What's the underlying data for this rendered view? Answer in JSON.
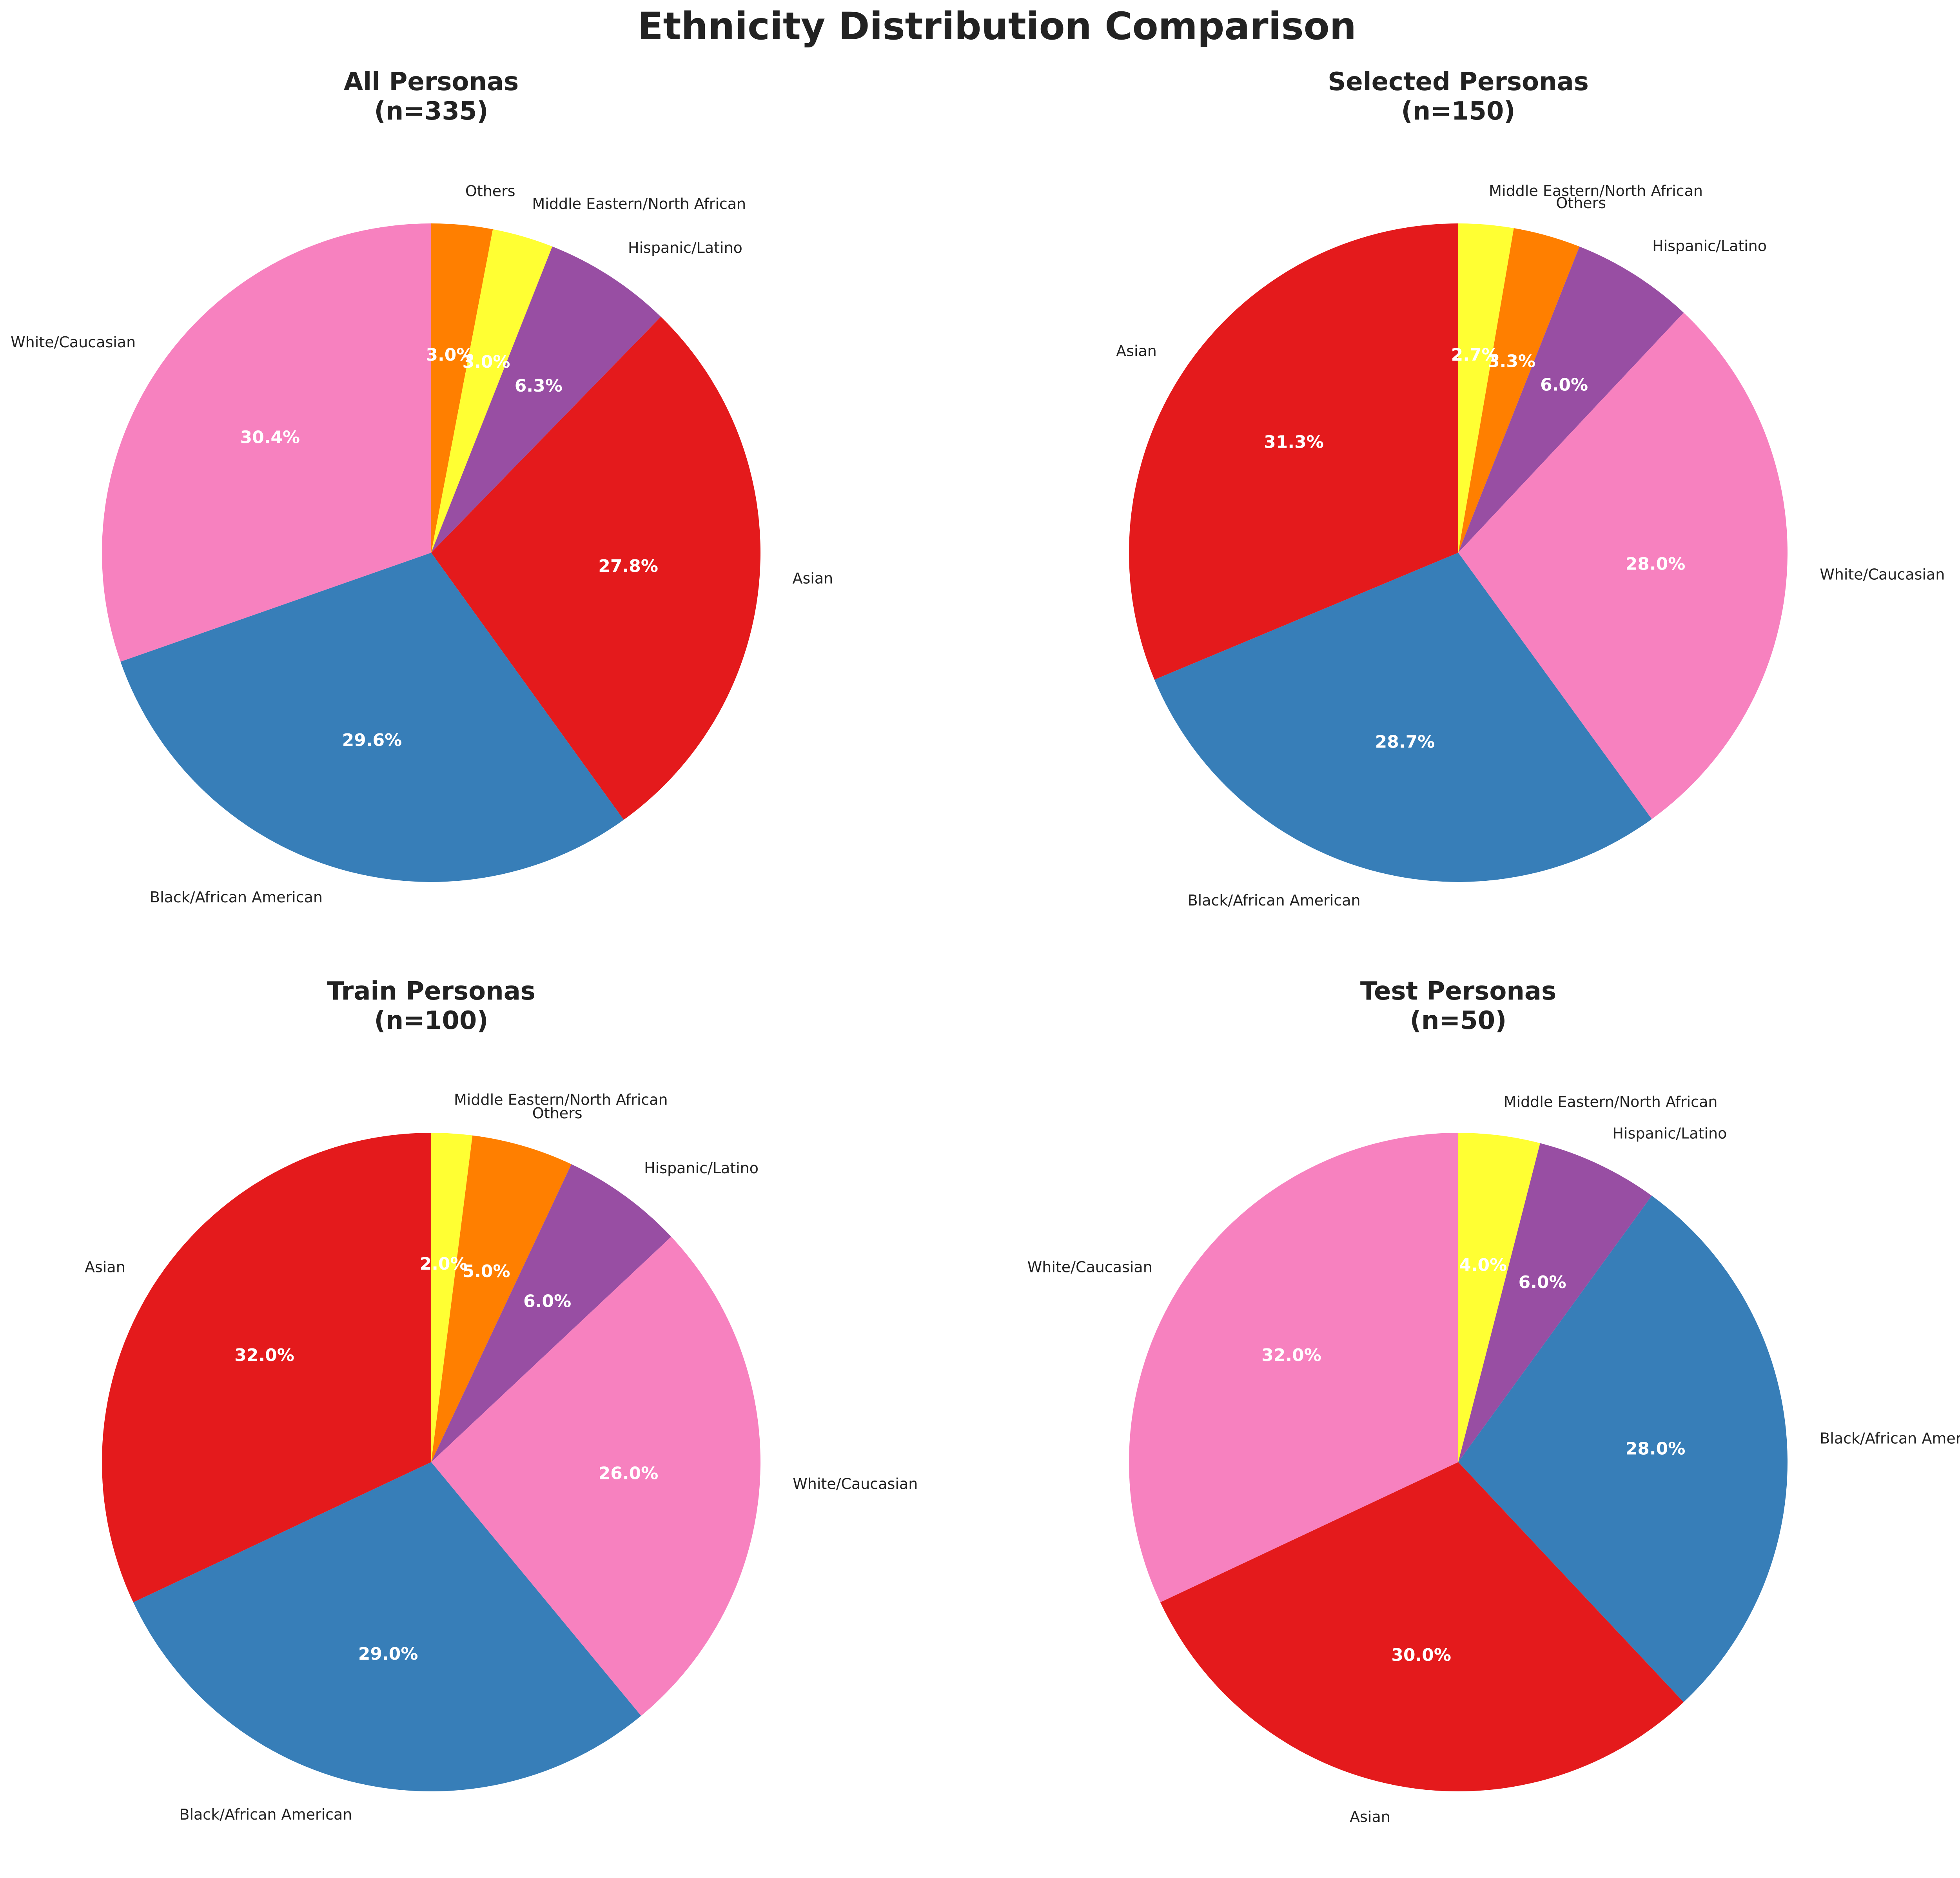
{
  "chart_data": {
    "type": "pie",
    "title": "Ethnicity Distribution Comparison",
    "start_angle_deg": 90,
    "direction": "clockwise",
    "colors": {
      "Asian": "#e41a1c",
      "Black/African American": "#377eb8",
      "Hispanic/Latino": "#984ea3",
      "White/Caucasian": "#f781bf",
      "Middle Eastern/North African": "#ffff33",
      "Others": "#ff7f00"
    },
    "panels": [
      {
        "title_line1": "All Personas",
        "title_line2": "(n=335)",
        "slices": [
          {
            "label": "Others",
            "value": 3.0,
            "pct_text": "3.0%"
          },
          {
            "label": "Middle Eastern/North African",
            "value": 3.0,
            "pct_text": "3.0%"
          },
          {
            "label": "Hispanic/Latino",
            "value": 6.3,
            "pct_text": "6.3%"
          },
          {
            "label": "Asian",
            "value": 27.8,
            "pct_text": "27.8%"
          },
          {
            "label": "Black/African American",
            "value": 29.6,
            "pct_text": "29.6%"
          },
          {
            "label": "White/Caucasian",
            "value": 30.4,
            "pct_text": "30.4%"
          }
        ]
      },
      {
        "title_line1": "Selected Personas",
        "title_line2": "(n=150)",
        "slices": [
          {
            "label": "Middle Eastern/North African",
            "value": 2.7,
            "pct_text": "2.7%"
          },
          {
            "label": "Others",
            "value": 3.3,
            "pct_text": "3.3%"
          },
          {
            "label": "Hispanic/Latino",
            "value": 6.0,
            "pct_text": "6.0%"
          },
          {
            "label": "White/Caucasian",
            "value": 28.0,
            "pct_text": "28.0%"
          },
          {
            "label": "Black/African American",
            "value": 28.7,
            "pct_text": "28.7%"
          },
          {
            "label": "Asian",
            "value": 31.3,
            "pct_text": "31.3%"
          }
        ]
      },
      {
        "title_line1": "Train Personas",
        "title_line2": "(n=100)",
        "slices": [
          {
            "label": "Middle Eastern/North African",
            "value": 2.0,
            "pct_text": "2.0%"
          },
          {
            "label": "Others",
            "value": 5.0,
            "pct_text": "5.0%"
          },
          {
            "label": "Hispanic/Latino",
            "value": 6.0,
            "pct_text": "6.0%"
          },
          {
            "label": "White/Caucasian",
            "value": 26.0,
            "pct_text": "26.0%"
          },
          {
            "label": "Black/African American",
            "value": 29.0,
            "pct_text": "29.0%"
          },
          {
            "label": "Asian",
            "value": 32.0,
            "pct_text": "32.0%"
          }
        ]
      },
      {
        "title_line1": "Test Personas",
        "title_line2": "(n=50)",
        "slices": [
          {
            "label": "Middle Eastern/North African",
            "value": 4.0,
            "pct_text": "4.0%"
          },
          {
            "label": "Hispanic/Latino",
            "value": 6.0,
            "pct_text": "6.0%"
          },
          {
            "label": "Black/African American",
            "value": 28.0,
            "pct_text": "28.0%"
          },
          {
            "label": "Asian",
            "value": 30.0,
            "pct_text": "30.0%"
          },
          {
            "label": "White/Caucasian",
            "value": 32.0,
            "pct_text": "32.0%"
          }
        ]
      }
    ]
  }
}
